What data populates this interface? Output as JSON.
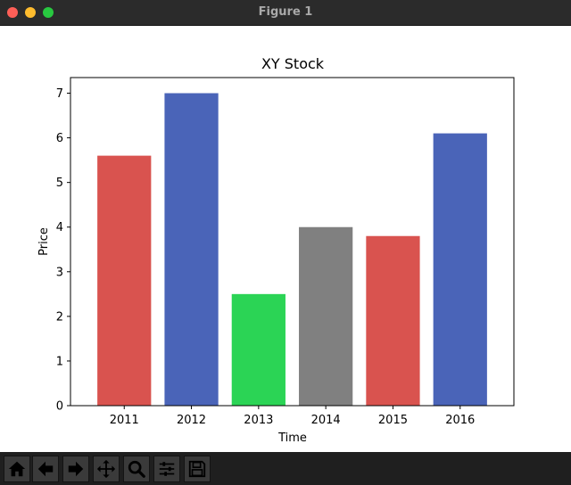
{
  "window": {
    "title": "Figure 1"
  },
  "toolbar": {
    "buttons": [
      "home-icon",
      "back-arrow-icon",
      "forward-arrow-icon",
      "pan-icon",
      "zoom-icon",
      "configure-subplots-icon",
      "save-icon"
    ]
  },
  "chart_data": {
    "type": "bar",
    "title": "XY Stock",
    "xlabel": "Time",
    "ylabel": "Price",
    "categories": [
      "2011",
      "2012",
      "2013",
      "2014",
      "2015",
      "2016"
    ],
    "values": [
      5.6,
      7.0,
      2.5,
      4.0,
      3.8,
      6.1
    ],
    "colors": [
      "#d9534f",
      "#4a64b8",
      "#2bd455",
      "#808080",
      "#d9534f",
      "#4a64b8"
    ],
    "ylim": [
      0,
      7.35
    ],
    "yticks": [
      0,
      1,
      2,
      3,
      4,
      5,
      6,
      7
    ],
    "grid": false
  }
}
